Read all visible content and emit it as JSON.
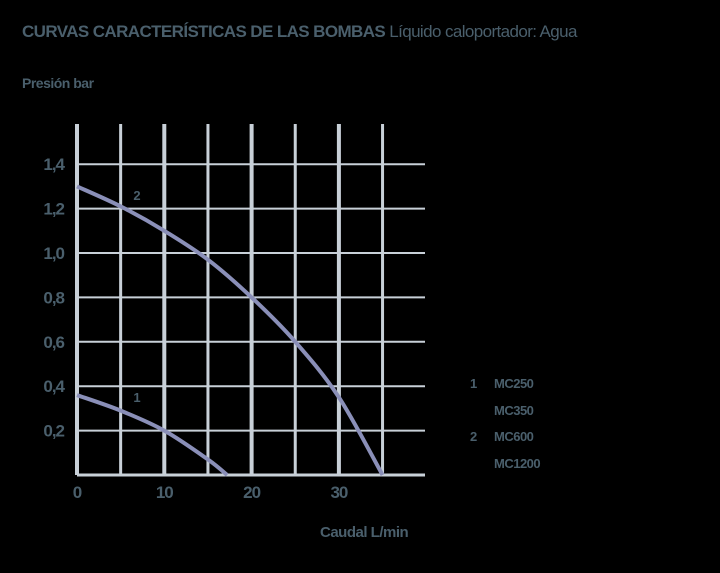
{
  "header": {
    "title_strong": "CURVAS CARACTERÍSTICAS DE LAS BOMBAS",
    "title_rest": "Líquido caloportador: Agua"
  },
  "colors": {
    "text": "#4a5f6c",
    "grid": "#c8d0d8",
    "curve": "#8a8fb8",
    "background": "#000000"
  },
  "legend": [
    {
      "num": "1",
      "model": "MC250"
    },
    {
      "num": "",
      "model": "MC350"
    },
    {
      "num": "2",
      "model": "MC600"
    },
    {
      "num": "",
      "model": "MC1200"
    }
  ],
  "chart_data": {
    "type": "line",
    "title": "CURVAS CARACTERÍSTICAS DE LAS BOMBAS Líquido caloportador: Agua",
    "xlabel": "Caudal L/min",
    "ylabel": "Presión bar",
    "xlim": [
      0,
      40
    ],
    "ylim": [
      0,
      1.6
    ],
    "x_ticks": [
      "0",
      "10",
      "20",
      "30"
    ],
    "y_ticks": [
      "0,2",
      "0,4",
      "0,6",
      "0,8",
      "1,0",
      "1,2",
      "1,4"
    ],
    "grid": true,
    "legend_position": "right",
    "series": [
      {
        "name": "1",
        "models": [
          "MC250",
          "MC350"
        ],
        "x": [
          0,
          5,
          10,
          15,
          17.2
        ],
        "y": [
          0.36,
          0.29,
          0.2,
          0.07,
          0.0
        ]
      },
      {
        "name": "2",
        "models": [
          "MC600",
          "MC1200"
        ],
        "x": [
          0,
          5,
          10,
          15,
          20,
          25,
          30,
          35
        ],
        "y": [
          1.3,
          1.21,
          1.1,
          0.97,
          0.8,
          0.6,
          0.35,
          0.0
        ]
      }
    ]
  }
}
